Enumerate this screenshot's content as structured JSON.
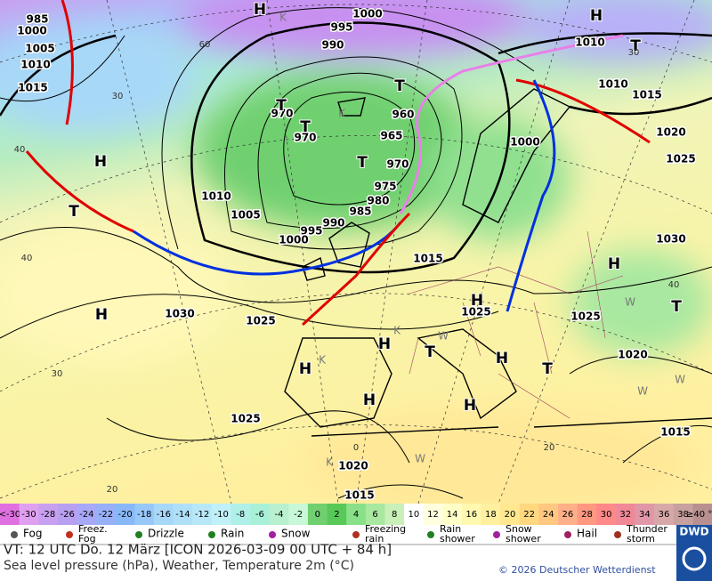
{
  "map": {
    "isobar_labels": [
      "1000",
      "995",
      "990",
      "985",
      "1000",
      "1005",
      "1010",
      "1015",
      "970",
      "970",
      "960",
      "965",
      "970",
      "975",
      "980",
      "985",
      "990",
      "995",
      "1000",
      "1005",
      "1010",
      "1015",
      "1000",
      "1010",
      "1010",
      "1015",
      "1020",
      "1025",
      "1030",
      "1030",
      "1025",
      "1025",
      "1025",
      "1020",
      "1025",
      "1020",
      "1015",
      "1015"
    ],
    "pressure_centers": [
      "H",
      "H",
      "T",
      "T",
      "T",
      "T",
      "T",
      "H",
      "T",
      "H",
      "H",
      "H",
      "H",
      "T",
      "H",
      "H",
      "H",
      "T",
      "T",
      "H"
    ],
    "temperature_isolines": [
      "30",
      "60",
      "40",
      "40",
      "30",
      "20",
      "0",
      "20",
      "40",
      "30"
    ],
    "air_mass_labels": [
      "K",
      "K",
      "K",
      "W",
      "K",
      "W",
      "W",
      "W",
      "K",
      "W"
    ]
  },
  "color_scale": {
    "labels": [
      "<-30",
      "-30",
      "-28",
      "-26",
      "-24",
      "-22",
      "-20",
      "-18",
      "-16",
      "-14",
      "-12",
      "-10",
      "-8",
      "-6",
      "-4",
      "-2",
      "0",
      "2",
      "4",
      "6",
      "8",
      "10",
      "12",
      "14",
      "16",
      "18",
      "20",
      "22",
      "24",
      "26",
      "28",
      "30",
      "32",
      "34",
      "36",
      "38",
      "≥40 °C"
    ],
    "colors": [
      "#e070e0",
      "#e0a0f0",
      "#c8a0f0",
      "#b8a0f0",
      "#a8a8f8",
      "#98b0f8",
      "#88b8f8",
      "#98c8f8",
      "#a8d8f8",
      "#b0e0f8",
      "#b8e8f8",
      "#c0f0f8",
      "#b0f0e8",
      "#a8f0d8",
      "#b8f0d0",
      "#c8f8d8",
      "#70d070",
      "#58c858",
      "#88e088",
      "#a8e8a0",
      "#c8f0b8",
      "#ffffff",
      "#ffffe0",
      "#ffffc8",
      "#fff8b0",
      "#fff0a0",
      "#ffe890",
      "#ffd880",
      "#ffc880",
      "#ffb088",
      "#ff9880",
      "#ff8888",
      "#f08898",
      "#e098a8",
      "#d8a8a8",
      "#c8a0a0",
      "#b89090"
    ]
  },
  "weather_legend": [
    {
      "lines": [
        "Fog"
      ]
    },
    {
      "lines": [
        "Freez.",
        "Fog"
      ]
    },
    {
      "lines": [
        "Drizzle"
      ]
    },
    {
      "lines": [
        "Rain"
      ]
    },
    {
      "lines": [
        "Snow"
      ]
    },
    {
      "lines": [
        "Freezing",
        "rain"
      ]
    },
    {
      "lines": [
        "Rain",
        "shower"
      ]
    },
    {
      "lines": [
        "Snow",
        "shower"
      ]
    },
    {
      "lines": [
        "Hail"
      ]
    },
    {
      "lines": [
        "Thunder",
        "storm"
      ]
    }
  ],
  "footer": {
    "valid_time": "VT: 12 UTC Do.  12 März [ICON 2026-03-09  00 UTC + 84 h]",
    "description": "Sea level pressure (hPa), Weather, Temperature 2m (°C)",
    "copyright": "© 2026 Deutscher Wetterdienst",
    "logo": "DWD"
  }
}
